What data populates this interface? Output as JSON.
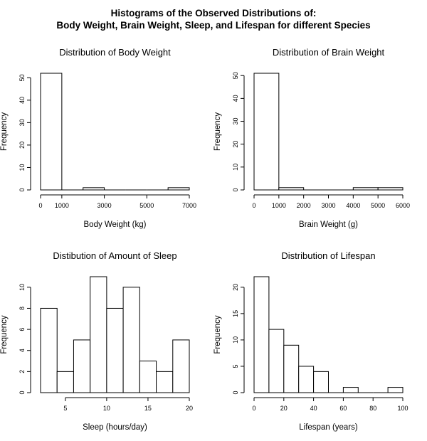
{
  "figure": {
    "title_line1": "Histograms of the Observed Distributions of:",
    "title_line2": "Body Weight, Brain Weight, Sleep, and Lifespan for different Species"
  },
  "chart_data": [
    {
      "type": "bar",
      "title": "Distribution of Body Weight",
      "xlabel": "Body Weight (kg)",
      "ylabel": "Frequency",
      "bins": [
        [
          0,
          1000
        ],
        [
          1000,
          2000
        ],
        [
          2000,
          3000
        ],
        [
          3000,
          4000
        ],
        [
          4000,
          5000
        ],
        [
          5000,
          6000
        ],
        [
          6000,
          7000
        ]
      ],
      "values": [
        52,
        0,
        1,
        0,
        0,
        0,
        1
      ],
      "xlim": [
        0,
        7000
      ],
      "ylim": [
        0,
        52
      ],
      "xticks": [
        0,
        1000,
        3000,
        5000,
        7000
      ],
      "yticks": [
        0,
        10,
        20,
        30,
        40,
        50
      ],
      "grid": false
    },
    {
      "type": "bar",
      "title": "Distribution of Brain Weight",
      "xlabel": "Brain Weight (g)",
      "ylabel": "Frequency",
      "bins": [
        [
          0,
          1000
        ],
        [
          1000,
          2000
        ],
        [
          2000,
          3000
        ],
        [
          3000,
          4000
        ],
        [
          4000,
          5000
        ],
        [
          5000,
          6000
        ]
      ],
      "values": [
        51,
        1,
        0,
        0,
        1,
        1
      ],
      "xlim": [
        0,
        6000
      ],
      "ylim": [
        0,
        51
      ],
      "xticks": [
        0,
        1000,
        2000,
        3000,
        4000,
        5000,
        6000
      ],
      "yticks": [
        0,
        10,
        20,
        30,
        40,
        50
      ],
      "grid": false
    },
    {
      "type": "bar",
      "title": "Distibution of Amount of Sleep",
      "xlabel": "Sleep (hours/day)",
      "ylabel": "Frequency",
      "bins": [
        [
          2,
          4
        ],
        [
          4,
          6
        ],
        [
          6,
          8
        ],
        [
          8,
          10
        ],
        [
          10,
          12
        ],
        [
          12,
          14
        ],
        [
          14,
          16
        ],
        [
          16,
          18
        ],
        [
          18,
          20
        ]
      ],
      "values": [
        8,
        2,
        5,
        11,
        8,
        10,
        3,
        2,
        5
      ],
      "xlim": [
        2,
        20
      ],
      "ylim": [
        0,
        11
      ],
      "xticks": [
        5,
        10,
        15,
        20
      ],
      "yticks": [
        0,
        2,
        4,
        6,
        8,
        10
      ],
      "grid": false
    },
    {
      "type": "bar",
      "title": "Distribution of Lifespan",
      "xlabel": "Lifespan (years)",
      "ylabel": "Frequency",
      "bins": [
        [
          0,
          10
        ],
        [
          10,
          20
        ],
        [
          20,
          30
        ],
        [
          30,
          40
        ],
        [
          40,
          50
        ],
        [
          50,
          60
        ],
        [
          60,
          70
        ],
        [
          70,
          80
        ],
        [
          80,
          90
        ],
        [
          90,
          100
        ]
      ],
      "values": [
        22,
        12,
        9,
        5,
        4,
        0,
        1,
        0,
        0,
        1
      ],
      "xlim": [
        0,
        100
      ],
      "ylim": [
        0,
        22
      ],
      "xticks": [
        0,
        20,
        40,
        60,
        80,
        100
      ],
      "yticks": [
        0,
        5,
        10,
        15,
        20
      ],
      "grid": false
    }
  ]
}
